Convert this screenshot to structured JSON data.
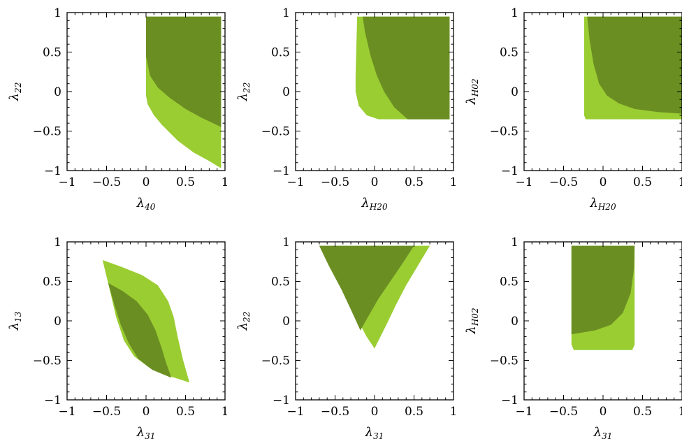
{
  "colors": {
    "light_region": "#9acd32",
    "dark_region": "#6b8e23"
  },
  "chart_data": [
    {
      "type": "area",
      "xlabel": {
        "base": "λ",
        "sub": "40"
      },
      "ylabel": {
        "base": "λ",
        "sub": "22"
      },
      "xlim": [
        -1,
        1
      ],
      "ylim": [
        -1,
        1
      ],
      "xticks": [
        "−1",
        "−0.5",
        "0",
        "0.5",
        "1"
      ],
      "yticks": [
        "−1",
        "−0.5",
        "0",
        "0.5",
        "1"
      ],
      "regions": [
        {
          "color": "light",
          "polygon": [
            [
              0,
              0.95
            ],
            [
              0.95,
              0.95
            ],
            [
              0.95,
              -0.97
            ],
            [
              0.8,
              -0.88
            ],
            [
              0.6,
              -0.77
            ],
            [
              0.4,
              -0.62
            ],
            [
              0.2,
              -0.42
            ],
            [
              0.1,
              -0.3
            ],
            [
              0.02,
              -0.16
            ],
            [
              0,
              -0.05
            ]
          ]
        },
        {
          "color": "dark",
          "polygon": [
            [
              0,
              0.95
            ],
            [
              0.95,
              0.95
            ],
            [
              0.95,
              -0.45
            ],
            [
              0.7,
              -0.33
            ],
            [
              0.5,
              -0.22
            ],
            [
              0.3,
              -0.08
            ],
            [
              0.15,
              0.05
            ],
            [
              0.05,
              0.2
            ],
            [
              0,
              0.45
            ]
          ]
        }
      ]
    },
    {
      "type": "area",
      "xlabel": {
        "base": "λ",
        "sub": "H20"
      },
      "ylabel": {
        "base": "λ",
        "sub": "22"
      },
      "xlim": [
        -1,
        1
      ],
      "ylim": [
        -1,
        1
      ],
      "xticks": [
        "−1",
        "−0.5",
        "0",
        "0.5",
        "1"
      ],
      "yticks": [
        "−1",
        "−0.5",
        "0",
        "0.5",
        "1"
      ],
      "regions": [
        {
          "color": "light",
          "polygon": [
            [
              -0.22,
              0.95
            ],
            [
              0.95,
              0.95
            ],
            [
              0.95,
              -0.35
            ],
            [
              0.05,
              -0.35
            ],
            [
              -0.1,
              -0.3
            ],
            [
              -0.2,
              -0.18
            ],
            [
              -0.24,
              0
            ],
            [
              -0.24,
              0.2
            ]
          ]
        },
        {
          "color": "dark",
          "polygon": [
            [
              -0.15,
              0.95
            ],
            [
              0.95,
              0.95
            ],
            [
              0.95,
              -0.35
            ],
            [
              0.42,
              -0.35
            ],
            [
              0.25,
              -0.2
            ],
            [
              0.12,
              0
            ],
            [
              0.03,
              0.2
            ],
            [
              -0.05,
              0.45
            ],
            [
              -0.12,
              0.75
            ]
          ]
        }
      ]
    },
    {
      "type": "area",
      "xlabel": {
        "base": "λ",
        "sub": "H20"
      },
      "ylabel": {
        "base": "λ",
        "sub": "H02"
      },
      "xlim": [
        -1,
        1
      ],
      "ylim": [
        -1,
        1
      ],
      "xticks": [
        "−1",
        "−0.5",
        "0",
        "0.5",
        "1"
      ],
      "yticks": [
        "−1",
        "−0.5",
        "0",
        "0.5",
        "1"
      ],
      "regions": [
        {
          "color": "light",
          "polygon": [
            [
              -0.24,
              0.95
            ],
            [
              1.0,
              0.95
            ],
            [
              1.0,
              -0.35
            ],
            [
              -0.22,
              -0.35
            ],
            [
              -0.24,
              -0.3
            ]
          ]
        },
        {
          "color": "dark",
          "polygon": [
            [
              -0.2,
              0.95
            ],
            [
              1.0,
              0.95
            ],
            [
              1.0,
              -0.28
            ],
            [
              0.7,
              -0.26
            ],
            [
              0.4,
              -0.22
            ],
            [
              0.2,
              -0.15
            ],
            [
              0.05,
              -0.05
            ],
            [
              -0.05,
              0.1
            ],
            [
              -0.12,
              0.35
            ],
            [
              -0.17,
              0.65
            ]
          ]
        }
      ]
    },
    {
      "type": "area",
      "xlabel": {
        "base": "λ",
        "sub": "31"
      },
      "ylabel": {
        "base": "λ",
        "sub": "13"
      },
      "xlim": [
        -1,
        1
      ],
      "ylim": [
        -1,
        1
      ],
      "xticks": [
        "−1",
        "−0.5",
        "0",
        "0.5",
        "1"
      ],
      "yticks": [
        "−1",
        "−0.5",
        "0",
        "0.5",
        "1"
      ],
      "regions": [
        {
          "color": "light",
          "polygon": [
            [
              -0.55,
              0.77
            ],
            [
              -0.3,
              0.68
            ],
            [
              -0.05,
              0.58
            ],
            [
              0.15,
              0.45
            ],
            [
              0.28,
              0.25
            ],
            [
              0.35,
              0.05
            ],
            [
              0.4,
              -0.2
            ],
            [
              0.47,
              -0.5
            ],
            [
              0.55,
              -0.78
            ],
            [
              0.3,
              -0.7
            ],
            [
              0.05,
              -0.6
            ],
            [
              -0.15,
              -0.45
            ],
            [
              -0.28,
              -0.25
            ],
            [
              -0.38,
              0.05
            ],
            [
              -0.45,
              0.35
            ]
          ]
        },
        {
          "color": "dark",
          "polygon": [
            [
              -0.48,
              0.48
            ],
            [
              -0.3,
              0.38
            ],
            [
              -0.12,
              0.25
            ],
            [
              0.02,
              0.08
            ],
            [
              0.12,
              -0.12
            ],
            [
              0.2,
              -0.35
            ],
            [
              0.25,
              -0.52
            ],
            [
              0.32,
              -0.72
            ],
            [
              0.08,
              -0.62
            ],
            [
              -0.1,
              -0.48
            ],
            [
              -0.22,
              -0.28
            ],
            [
              -0.32,
              -0.05
            ],
            [
              -0.4,
              0.2
            ]
          ]
        }
      ]
    },
    {
      "type": "area",
      "xlabel": {
        "base": "λ",
        "sub": "31"
      },
      "ylabel": {
        "base": "λ",
        "sub": "22"
      },
      "xlim": [
        -1,
        1
      ],
      "ylim": [
        -1,
        1
      ],
      "xticks": [
        "−1",
        "−0.5",
        "0",
        "0.5",
        "1"
      ],
      "yticks": [
        "−1",
        "−0.5",
        "0",
        "0.5",
        "1"
      ],
      "regions": [
        {
          "color": "light",
          "polygon": [
            [
              -0.7,
              0.95
            ],
            [
              0.7,
              0.95
            ],
            [
              0.55,
              0.7
            ],
            [
              0.4,
              0.45
            ],
            [
              0.27,
              0.2
            ],
            [
              0.15,
              -0.05
            ],
            [
              0.05,
              -0.25
            ],
            [
              0,
              -0.35
            ],
            [
              -0.1,
              -0.2
            ],
            [
              -0.25,
              0.08
            ],
            [
              -0.42,
              0.4
            ],
            [
              -0.58,
              0.7
            ]
          ]
        },
        {
          "color": "dark",
          "polygon": [
            [
              -0.7,
              0.95
            ],
            [
              0.5,
              0.95
            ],
            [
              0.35,
              0.72
            ],
            [
              0.2,
              0.5
            ],
            [
              0.05,
              0.28
            ],
            [
              -0.1,
              0.02
            ],
            [
              -0.18,
              -0.12
            ],
            [
              -0.28,
              0.1
            ],
            [
              -0.42,
              0.4
            ],
            [
              -0.58,
              0.7
            ]
          ]
        }
      ]
    },
    {
      "type": "area",
      "xlabel": {
        "base": "λ",
        "sub": "31"
      },
      "ylabel": {
        "base": "λ",
        "sub": "H02"
      },
      "xlim": [
        -1,
        1
      ],
      "ylim": [
        -1,
        1
      ],
      "xticks": [
        "−1",
        "−0.5",
        "0",
        "0.5",
        "1"
      ],
      "yticks": [
        "−1",
        "−0.5",
        "0",
        "0.5",
        "1"
      ],
      "regions": [
        {
          "color": "light",
          "polygon": [
            [
              -0.4,
              0.95
            ],
            [
              0.4,
              0.95
            ],
            [
              0.4,
              -0.3
            ],
            [
              0.37,
              -0.37
            ],
            [
              -0.37,
              -0.37
            ],
            [
              -0.4,
              -0.3
            ]
          ]
        },
        {
          "color": "dark",
          "polygon": [
            [
              -0.4,
              0.95
            ],
            [
              0.4,
              0.95
            ],
            [
              0.39,
              0.65
            ],
            [
              0.35,
              0.35
            ],
            [
              0.25,
              0.1
            ],
            [
              0.1,
              -0.05
            ],
            [
              -0.1,
              -0.12
            ],
            [
              -0.4,
              -0.17
            ]
          ]
        }
      ]
    }
  ]
}
